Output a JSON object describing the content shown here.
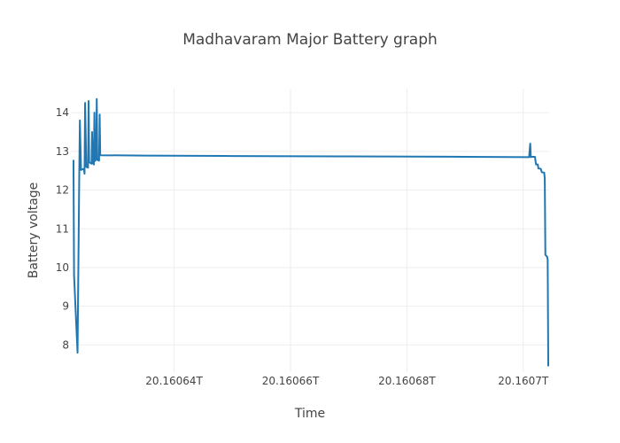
{
  "chart_data": {
    "type": "line",
    "title": "Madhavaram Major Battery graph",
    "xlabel": "Time",
    "ylabel": "Battery voltage",
    "x_ticks": [
      "20.16064T",
      "20.16066T",
      "20.16068T",
      "20.1607T"
    ],
    "y_ticks": [
      "8",
      "9",
      "10",
      "11",
      "12",
      "13",
      "14"
    ],
    "grid": true,
    "legend": "none",
    "color": "#1f77b4",
    "series": [
      {
        "points": [
          [
            20.1606227,
            12.78
          ],
          [
            20.1606228,
            9.8
          ],
          [
            20.1606234,
            7.8
          ],
          [
            20.1606237,
            12.5
          ],
          [
            20.1606238,
            13.8
          ],
          [
            20.160624,
            12.52
          ],
          [
            20.1606245,
            12.55
          ],
          [
            20.1606246,
            12.42
          ],
          [
            20.1606247,
            14.25
          ],
          [
            20.1606249,
            12.6
          ],
          [
            20.1606252,
            12.58
          ],
          [
            20.1606253,
            14.3
          ],
          [
            20.1606254,
            12.72
          ],
          [
            20.1606258,
            12.68
          ],
          [
            20.1606259,
            13.5
          ],
          [
            20.160626,
            12.7
          ],
          [
            20.1606262,
            12.66
          ],
          [
            20.1606263,
            14.0
          ],
          [
            20.1606264,
            12.75
          ],
          [
            20.1606266,
            12.8
          ],
          [
            20.1606267,
            14.35
          ],
          [
            20.1606268,
            12.78
          ],
          [
            20.1606271,
            12.76
          ],
          [
            20.1606272,
            13.95
          ],
          [
            20.1606273,
            12.9
          ],
          [
            20.160635,
            12.89
          ],
          [
            20.16065,
            12.88
          ],
          [
            20.16067,
            12.87
          ],
          [
            20.16069,
            12.86
          ],
          [
            20.160701,
            12.85
          ],
          [
            20.1607012,
            13.2
          ],
          [
            20.1607013,
            12.85
          ],
          [
            20.1607015,
            12.86
          ],
          [
            20.160702,
            12.86
          ],
          [
            20.1607022,
            12.66
          ],
          [
            20.1607025,
            12.66
          ],
          [
            20.1607026,
            12.56
          ],
          [
            20.160703,
            12.55
          ],
          [
            20.1607032,
            12.46
          ],
          [
            20.1607036,
            12.45
          ],
          [
            20.1607037,
            12.3
          ],
          [
            20.1607038,
            10.33
          ],
          [
            20.1607041,
            10.28
          ],
          [
            20.1607042,
            10.2
          ],
          [
            20.1607043,
            7.45
          ]
        ]
      }
    ],
    "xlim": [
      20.16062225,
      20.16070445
    ],
    "ylim": [
      7.3,
      14.62
    ]
  }
}
